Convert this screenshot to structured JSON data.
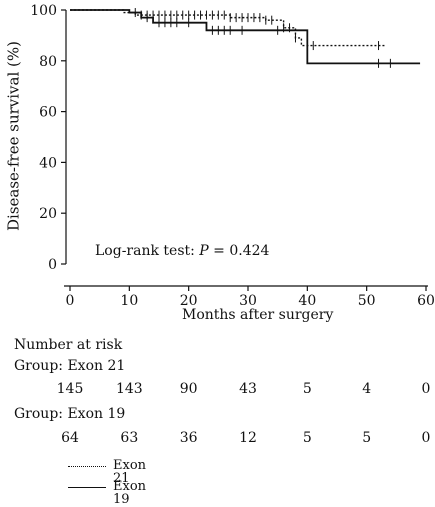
{
  "chart_data": {
    "type": "line",
    "subtype": "kaplan-meier",
    "xlabel": "Months after surgery",
    "ylabel": "Disease-free survival (%)",
    "xlim": [
      0,
      60
    ],
    "ylim": [
      0,
      100
    ],
    "xticks": [
      0,
      10,
      20,
      30,
      40,
      50,
      60
    ],
    "yticks": [
      0,
      20,
      40,
      60,
      80,
      100
    ],
    "grid": false,
    "annotation": "Log-rank test: P = 0.424",
    "series": [
      {
        "name": "Exon 21",
        "line_style": "dotted",
        "steps": [
          [
            0,
            100
          ],
          [
            9,
            99
          ],
          [
            11,
            98
          ],
          [
            27,
            97
          ],
          [
            33,
            96
          ],
          [
            36,
            93
          ],
          [
            38,
            89
          ],
          [
            39,
            86
          ],
          [
            53,
            86
          ]
        ],
        "censors": [
          12,
          13,
          14,
          15,
          16,
          17,
          18,
          19,
          20,
          21,
          22,
          23,
          24,
          25,
          26,
          27,
          28,
          29,
          30,
          31,
          32,
          33,
          34,
          36,
          37,
          38,
          41,
          52
        ]
      },
      {
        "name": "Exon 19",
        "line_style": "solid",
        "steps": [
          [
            0,
            100
          ],
          [
            10,
            99
          ],
          [
            12,
            97
          ],
          [
            14,
            95
          ],
          [
            23,
            92
          ],
          [
            32,
            92
          ],
          [
            40,
            79
          ],
          [
            59,
            79
          ]
        ],
        "censors": [
          11,
          13,
          15,
          16,
          17,
          18,
          20,
          24,
          25,
          26,
          27,
          29,
          35,
          52,
          54
        ]
      }
    ]
  },
  "risk_table": {
    "title": "Number at risk",
    "times": [
      0,
      10,
      20,
      30,
      40,
      50,
      60
    ],
    "groups": [
      {
        "label": "Group: Exon 21",
        "counts": [
          "145",
          "143",
          "90",
          "43",
          "5",
          "4",
          "0"
        ]
      },
      {
        "label": "Group: Exon 19",
        "counts": [
          "64",
          "63",
          "36",
          "12",
          "5",
          "5",
          "0"
        ]
      }
    ]
  },
  "legend": [
    {
      "label": "Exon 21",
      "line_style": "dotted"
    },
    {
      "label": "Exon 19",
      "line_style": "solid"
    }
  ],
  "colors": {
    "line": "#111111",
    "axis": "#111111",
    "background": "#ffffff"
  }
}
